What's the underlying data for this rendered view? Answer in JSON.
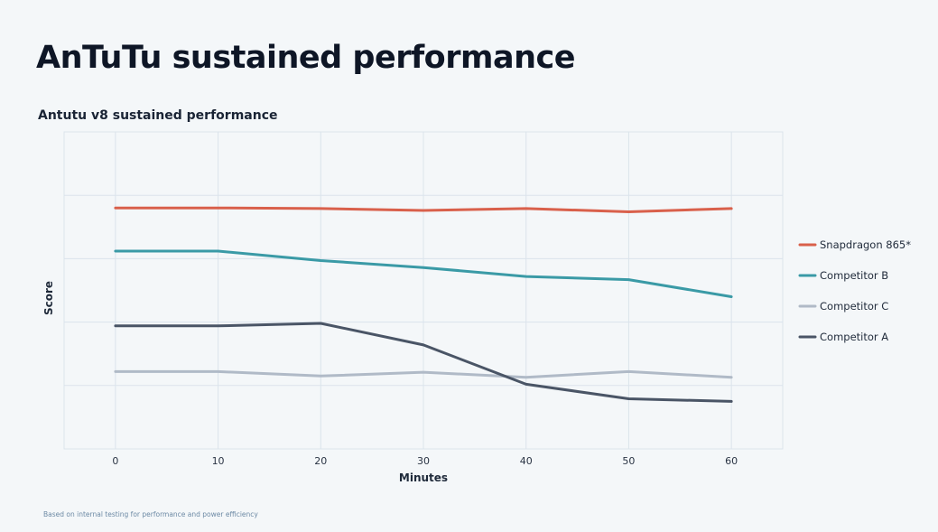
{
  "slide": {
    "title": "AnTuTu sustained performance",
    "footnote": "Based on internal testing for performance and power efficiency"
  },
  "chart_data": {
    "type": "line",
    "title": "Antutu v8 sustained performance",
    "xlabel": "Minutes",
    "ylabel": "Score",
    "x": [
      0,
      10,
      20,
      30,
      40,
      50,
      60
    ],
    "xlim": [
      -5,
      65
    ],
    "ylim": [
      0,
      5
    ],
    "y_tick_labels_shown": false,
    "grid": true,
    "legend_position": "right",
    "series": [
      {
        "name": "Snapdragon 865*",
        "color": "#d9604b",
        "values": [
          3.8,
          3.8,
          3.79,
          3.76,
          3.79,
          3.74,
          3.79
        ]
      },
      {
        "name": "Competitor B",
        "color": "#3a9aa6",
        "values": [
          3.12,
          3.12,
          2.97,
          2.86,
          2.72,
          2.67,
          2.4
        ]
      },
      {
        "name": "Competitor C",
        "color": "#b0bac7",
        "values": [
          1.22,
          1.22,
          1.15,
          1.21,
          1.13,
          1.22,
          1.13
        ]
      },
      {
        "name": "Competitor A",
        "color": "#4a5566",
        "values": [
          1.94,
          1.94,
          1.98,
          1.64,
          1.02,
          0.79,
          0.75
        ]
      }
    ]
  }
}
